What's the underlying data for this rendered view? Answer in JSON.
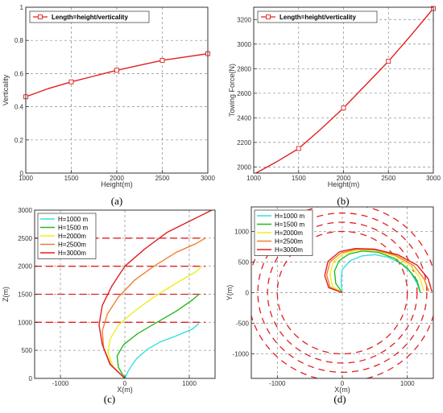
{
  "chart_data": [
    {
      "id": "a",
      "type": "line",
      "caption": "(a)",
      "xlabel": "Height(m)",
      "ylabel": "Verticality",
      "xlim": [
        1000,
        3000
      ],
      "ylim": [
        0,
        1
      ],
      "xticks": [
        1000,
        1500,
        2000,
        2500,
        3000
      ],
      "yticks": [
        0,
        0.2,
        0.4,
        0.6,
        0.8,
        1
      ],
      "grid": true,
      "legend_position": "top-left",
      "series": [
        {
          "name": "Length=height/verticality",
          "color": "#e02020",
          "marker": "square",
          "x": [
            1000,
            1250,
            1500,
            1750,
            2000,
            2250,
            2500,
            2750,
            3000
          ],
          "y": [
            0.46,
            0.51,
            0.55,
            0.585,
            0.62,
            0.65,
            0.68,
            0.7,
            0.72
          ],
          "marker_x": [
            1000,
            1500,
            2000,
            2500,
            3000
          ]
        }
      ]
    },
    {
      "id": "b",
      "type": "line",
      "caption": "(b)",
      "xlabel": "Height(m)",
      "ylabel": "Towing Force(N)",
      "xlim": [
        1000,
        3000
      ],
      "ylim": [
        1950,
        3300
      ],
      "xticks": [
        1000,
        1500,
        2000,
        2500,
        3000
      ],
      "yticks": [
        2000,
        2200,
        2400,
        2600,
        2800,
        3000,
        3200
      ],
      "grid": true,
      "legend_position": "top-left",
      "series": [
        {
          "name": "Length=height/verticality",
          "color": "#e02020",
          "marker": "square",
          "x": [
            1000,
            1250,
            1500,
            1750,
            2000,
            2250,
            2500,
            2750,
            3000
          ],
          "y": [
            1940,
            2040,
            2150,
            2310,
            2480,
            2670,
            2860,
            3070,
            3290
          ],
          "marker_x": [
            1500,
            2000,
            2500,
            3000
          ]
        }
      ]
    },
    {
      "id": "c",
      "type": "line",
      "caption": "(c)",
      "xlabel": "X(m)",
      "ylabel": "Z(m)",
      "xlim": [
        -1400,
        1400
      ],
      "ylim": [
        0,
        3000
      ],
      "xticks": [
        -1000,
        0,
        1000
      ],
      "yticks": [
        0,
        500,
        1000,
        1500,
        2000,
        2500,
        3000
      ],
      "grid": true,
      "legend_position": "top-left",
      "series": [
        {
          "name": "H=1000 m",
          "color": "#33e0e0",
          "x": [
            0,
            60,
            180,
            350,
            550,
            800,
            1050,
            1150
          ],
          "y": [
            0,
            150,
            350,
            520,
            650,
            760,
            880,
            980
          ]
        },
        {
          "name": "H=1500 m",
          "color": "#22bb22",
          "x": [
            0,
            -100,
            -120,
            -20,
            200,
            500,
            800,
            1050,
            1150
          ],
          "y": [
            0,
            200,
            400,
            600,
            800,
            1000,
            1200,
            1400,
            1500
          ]
        },
        {
          "name": "H=2000m",
          "color": "#eeee22",
          "x": [
            0,
            -180,
            -260,
            -230,
            -100,
            150,
            450,
            800,
            1100,
            1200
          ],
          "y": [
            0,
            200,
            450,
            700,
            950,
            1200,
            1450,
            1700,
            1900,
            2000
          ]
        },
        {
          "name": "H=2500m",
          "color": "#f08030",
          "x": [
            0,
            -220,
            -330,
            -350,
            -270,
            -100,
            150,
            450,
            800,
            1100,
            1250
          ],
          "y": [
            0,
            250,
            550,
            850,
            1150,
            1450,
            1750,
            2000,
            2250,
            2400,
            2500
          ]
        },
        {
          "name": "H=3000m",
          "color": "#e02020",
          "x": [
            0,
            -230,
            -350,
            -400,
            -350,
            -200,
            0,
            300,
            650,
            1000,
            1350
          ],
          "y": [
            0,
            250,
            600,
            950,
            1300,
            1650,
            2000,
            2300,
            2600,
            2800,
            3000
          ]
        }
      ],
      "dashed_levels": [
        1000,
        1500,
        2000,
        2500
      ],
      "dashed_levels_xrange": [
        -1400,
        1250
      ]
    },
    {
      "id": "d",
      "type": "line",
      "caption": "(d)",
      "xlabel": "X(m)",
      "ylabel": "Y(m)",
      "xlim": [
        -1400,
        1400
      ],
      "ylim": [
        -1400,
        1400
      ],
      "xticks": [
        -1000,
        0,
        1000
      ],
      "yticks": [
        -1000,
        -500,
        0,
        500,
        1000
      ],
      "grid": true,
      "legend_position": "top-left",
      "series": [
        {
          "name": "H=1000 m",
          "color": "#33e0e0",
          "x": [
            0,
            -20,
            0,
            120,
            300,
            500,
            700,
            900,
            1050,
            1150,
            1200
          ],
          "y": [
            0,
            200,
            380,
            520,
            600,
            620,
            580,
            480,
            330,
            150,
            0
          ]
        },
        {
          "name": "H=1500 m",
          "color": "#22bb22",
          "x": [
            0,
            -100,
            -120,
            -50,
            100,
            300,
            550,
            800,
            1000,
            1150,
            1200
          ],
          "y": [
            0,
            150,
            350,
            520,
            630,
            680,
            660,
            560,
            400,
            200,
            0
          ]
        },
        {
          "name": "H=2000m",
          "color": "#eeee22",
          "x": [
            0,
            -150,
            -190,
            -140,
            20,
            250,
            500,
            800,
            1050,
            1200,
            1250
          ],
          "y": [
            0,
            100,
            300,
            500,
            640,
            700,
            690,
            600,
            440,
            230,
            30
          ]
        },
        {
          "name": "H=2500m",
          "color": "#f08030",
          "x": [
            0,
            -190,
            -240,
            -190,
            -20,
            220,
            500,
            820,
            1100,
            1260,
            1330
          ],
          "y": [
            0,
            90,
            290,
            500,
            650,
            710,
            700,
            610,
            440,
            220,
            20
          ]
        },
        {
          "name": "H=3000m",
          "color": "#e02020",
          "x": [
            0,
            -210,
            -270,
            -220,
            -40,
            200,
            500,
            850,
            1150,
            1320,
            1380
          ],
          "y": [
            0,
            80,
            280,
            510,
            670,
            720,
            710,
            620,
            450,
            230,
            10
          ]
        }
      ],
      "dashed_circle_radii": [
        1000,
        1150,
        1300,
        1450
      ]
    }
  ]
}
